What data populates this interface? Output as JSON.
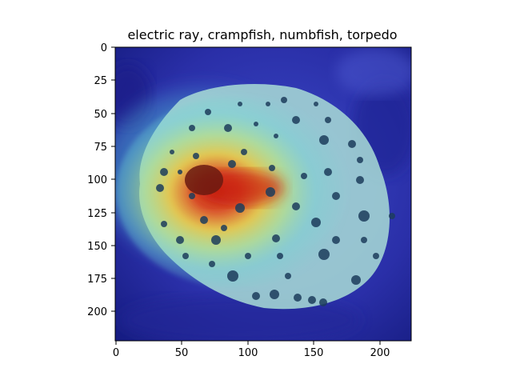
{
  "title": "electric ray, crampfish, numbfish, torpedo",
  "image": {
    "kind": "Grad-CAM style heatmap overlay on underwater photo of a spotted electric ray",
    "colormap": "jet",
    "size": [
      224,
      224
    ]
  },
  "axes": {
    "x_ticks": [
      "0",
      "50",
      "100",
      "150",
      "200"
    ],
    "y_ticks": [
      "0",
      "25",
      "50",
      "75",
      "100",
      "125",
      "150",
      "175",
      "200"
    ]
  },
  "colors": {
    "background": "#ffffff",
    "axis": "#000000",
    "deep_blue": "#1b1f8f",
    "ray_body": "#9fd8d0",
    "hot_red": "#d62a10",
    "hot_yellow": "#f3e24a",
    "spots": "#1d3d5c"
  }
}
